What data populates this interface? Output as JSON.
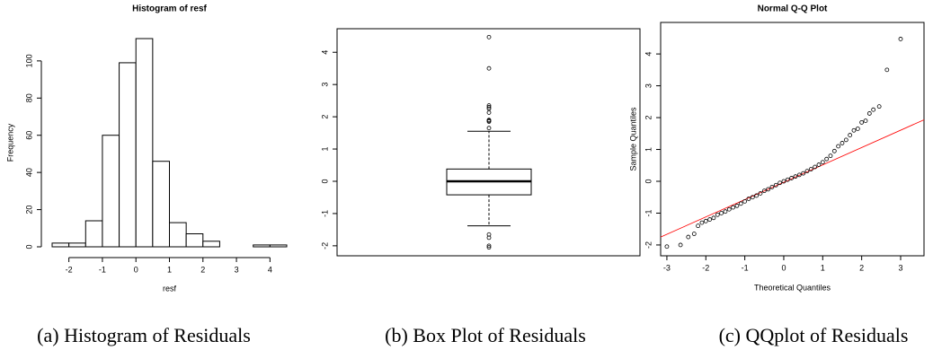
{
  "chart_data": [
    {
      "type": "histogram",
      "title": "Histogram of resf",
      "xlabel": "resf",
      "ylabel": "Frequency",
      "bins": [
        -2.5,
        -2,
        -1.5,
        -1,
        -0.5,
        0,
        0.5,
        1,
        1.5,
        2,
        2.5,
        3,
        3.5,
        4,
        4.5
      ],
      "counts": [
        2,
        2,
        14,
        60,
        99,
        112,
        46,
        13,
        7,
        3,
        0,
        0,
        1,
        1
      ],
      "xlim": [
        -2.5,
        4.5
      ],
      "ylim": [
        0,
        112
      ],
      "xticks": [
        -2,
        -1,
        0,
        1,
        2,
        3,
        4
      ],
      "yticks": [
        0,
        20,
        40,
        60,
        80,
        100
      ],
      "caption": "(a) Histogram of Residuals"
    },
    {
      "type": "box",
      "box": {
        "whisker_low": -1.38,
        "q1": -0.42,
        "median": 0,
        "q3": 0.38,
        "whisker_high": 1.55
      },
      "outliers": [
        4.47,
        3.5,
        2.35,
        2.3,
        2.25,
        2.13,
        1.9,
        1.88,
        1.85,
        1.65,
        -1.65,
        -1.75,
        -2.0,
        -2.05
      ],
      "ylim": [
        -2.31,
        4.73
      ],
      "yticks": [
        -2,
        -1,
        0,
        1,
        2,
        3,
        4
      ],
      "caption": "(b) Box Plot of Residuals"
    },
    {
      "type": "scatter",
      "title": "Normal Q-Q Plot",
      "xlabel": "Theoretical Quantiles",
      "ylabel": "Sample Quantiles",
      "x": [
        -3.0,
        -2.65,
        -2.45,
        -2.3,
        -2.2,
        -2.1,
        -2.0,
        -1.9,
        -1.8,
        -1.7,
        -1.6,
        -1.5,
        -1.4,
        -1.3,
        -1.2,
        -1.1,
        -1.0,
        -0.9,
        -0.8,
        -0.7,
        -0.6,
        -0.5,
        -0.4,
        -0.3,
        -0.2,
        -0.1,
        0,
        0.1,
        0.2,
        0.3,
        0.4,
        0.5,
        0.6,
        0.7,
        0.8,
        0.9,
        1.0,
        1.1,
        1.2,
        1.3,
        1.4,
        1.5,
        1.6,
        1.7,
        1.8,
        1.9,
        2.0,
        2.1,
        2.2,
        2.3,
        2.45,
        2.65,
        3.0
      ],
      "y": [
        -2.05,
        -2.0,
        -1.75,
        -1.65,
        -1.4,
        -1.3,
        -1.25,
        -1.2,
        -1.15,
        -1.05,
        -1.0,
        -0.95,
        -0.88,
        -0.82,
        -0.77,
        -0.7,
        -0.63,
        -0.55,
        -0.5,
        -0.45,
        -0.38,
        -0.3,
        -0.25,
        -0.18,
        -0.12,
        -0.05,
        0.0,
        0.05,
        0.1,
        0.15,
        0.2,
        0.25,
        0.32,
        0.38,
        0.45,
        0.52,
        0.6,
        0.7,
        0.8,
        0.95,
        1.1,
        1.2,
        1.3,
        1.45,
        1.6,
        1.65,
        1.85,
        1.9,
        2.13,
        2.25,
        2.35,
        3.5,
        4.47
      ],
      "qqline": {
        "intercept": -0.03,
        "slope": 0.545,
        "color": "#ff0000"
      },
      "xlim": [
        -3.16,
        3.6
      ],
      "ylim": [
        -2.34,
        4.99
      ],
      "xticks": [
        -3,
        -2,
        -1,
        0,
        1,
        2,
        3
      ],
      "yticks": [
        -2,
        -1,
        0,
        1,
        2,
        3,
        4
      ],
      "caption": "(c) QQplot of Residuals"
    }
  ]
}
